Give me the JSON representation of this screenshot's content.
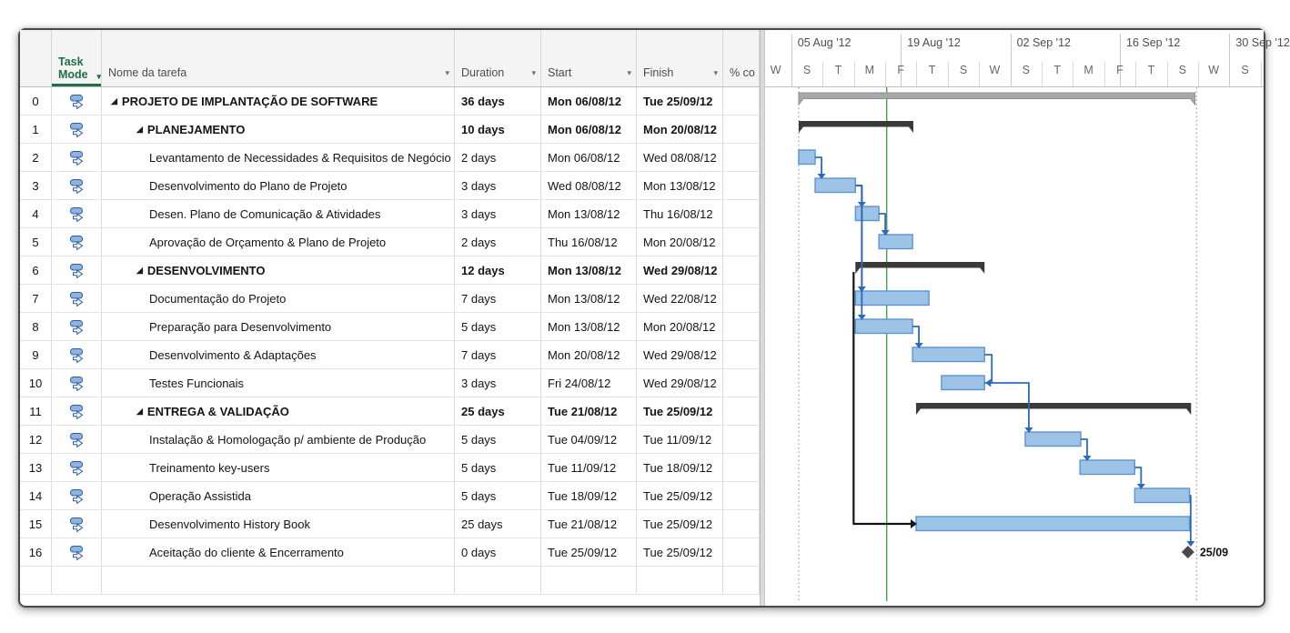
{
  "app": {
    "title": "Gantt chart - PROJETO DE IMPLANTAÇÃO DE SOFTWARE"
  },
  "table": {
    "columns": {
      "row_number": "",
      "task_mode": "Task Mode",
      "name": "Nome da tarefa",
      "duration": "Duration",
      "start": "Start",
      "finish": "Finish",
      "percent": "% co"
    },
    "filter_arrow_glyph": "▾",
    "expand_glyph": "◢",
    "rows": [
      {
        "id": 0,
        "level": 0,
        "summary": true,
        "name": "PROJETO DE IMPLANTAÇÃO DE SOFTWARE",
        "duration": "36 days",
        "start": "Mon 06/08/12",
        "finish": "Tue 25/09/12"
      },
      {
        "id": 1,
        "level": 1,
        "summary": true,
        "name": "PLANEJAMENTO",
        "duration": "10 days",
        "start": "Mon 06/08/12",
        "finish": "Mon 20/08/12"
      },
      {
        "id": 2,
        "level": 2,
        "summary": false,
        "name": "Levantamento de Necessidades & Requisitos de Negócio",
        "duration": "2 days",
        "start": "Mon 06/08/12",
        "finish": "Wed 08/08/12"
      },
      {
        "id": 3,
        "level": 2,
        "summary": false,
        "name": "Desenvolvimento do Plano de Projeto",
        "duration": "3 days",
        "start": "Wed 08/08/12",
        "finish": "Mon 13/08/12"
      },
      {
        "id": 4,
        "level": 2,
        "summary": false,
        "name": "Desen. Plano de Comunicação & Atividades",
        "duration": "3 days",
        "start": "Mon 13/08/12",
        "finish": "Thu 16/08/12"
      },
      {
        "id": 5,
        "level": 2,
        "summary": false,
        "name": "Aprovação de Orçamento & Plano de Projeto",
        "duration": "2 days",
        "start": "Thu 16/08/12",
        "finish": "Mon 20/08/12"
      },
      {
        "id": 6,
        "level": 1,
        "summary": true,
        "name": "DESENVOLVIMENTO",
        "duration": "12 days",
        "start": "Mon 13/08/12",
        "finish": "Wed 29/08/12"
      },
      {
        "id": 7,
        "level": 2,
        "summary": false,
        "name": "Documentação do Projeto",
        "duration": "7 days",
        "start": "Mon 13/08/12",
        "finish": "Wed 22/08/12"
      },
      {
        "id": 8,
        "level": 2,
        "summary": false,
        "name": "Preparação para Desenvolvimento",
        "duration": "5 days",
        "start": "Mon 13/08/12",
        "finish": "Mon 20/08/12"
      },
      {
        "id": 9,
        "level": 2,
        "summary": false,
        "name": "Desenvolvimento & Adaptações",
        "duration": "7 days",
        "start": "Mon 20/08/12",
        "finish": "Wed 29/08/12"
      },
      {
        "id": 10,
        "level": 2,
        "summary": false,
        "name": "Testes Funcionais",
        "duration": "3 days",
        "start": "Fri 24/08/12",
        "finish": "Wed 29/08/12"
      },
      {
        "id": 11,
        "level": 1,
        "summary": true,
        "name": "ENTREGA & VALIDAÇÃO",
        "duration": "25 days",
        "start": "Tue 21/08/12",
        "finish": "Tue 25/09/12"
      },
      {
        "id": 12,
        "level": 2,
        "summary": false,
        "name": "Instalação & Homologação p/ ambiente de Produção",
        "duration": "5 days",
        "start": "Tue 04/09/12",
        "finish": "Tue 11/09/12"
      },
      {
        "id": 13,
        "level": 2,
        "summary": false,
        "name": "Treinamento key-users",
        "duration": "5 days",
        "start": "Tue 11/09/12",
        "finish": "Tue 18/09/12"
      },
      {
        "id": 14,
        "level": 2,
        "summary": false,
        "name": "Operação Assistida",
        "duration": "5 days",
        "start": "Tue 18/09/12",
        "finish": "Tue 25/09/12"
      },
      {
        "id": 15,
        "level": 2,
        "summary": false,
        "name": "Desenvolvimento History Book",
        "duration": "25 days",
        "start": "Tue 21/08/12",
        "finish": "Tue 25/09/12"
      },
      {
        "id": 16,
        "level": 2,
        "summary": false,
        "name": "Aceitação do cliente & Encerramento",
        "duration": "0 days",
        "start": "Tue 25/09/12",
        "finish": "Tue 25/09/12"
      }
    ]
  },
  "timeline": {
    "tier_top_sections": [
      {
        "label": "05 Aug '12",
        "day": 4
      },
      {
        "label": "19 Aug '12",
        "day": 18
      },
      {
        "label": "02 Sep '12",
        "day": 32
      },
      {
        "label": "16 Sep '12",
        "day": 46
      },
      {
        "label": "30 Sep '12",
        "day": 60
      }
    ],
    "tier_bottom_letters": [
      "W",
      "S",
      "T",
      "M",
      "F",
      "T",
      "S",
      "W",
      "S",
      "T",
      "M",
      "F",
      "T",
      "S",
      "W",
      "S"
    ],
    "origin_date": "01 Aug '12",
    "days_per_cell": 4
  },
  "chart_data": {
    "type": "gantt",
    "note": "day offsets are calendar days from 01 Aug 2012",
    "tasks": [
      {
        "id": 0,
        "row": 0,
        "kind": "project_summary",
        "start_day": 4.95,
        "end_day": 55.6
      },
      {
        "id": 1,
        "row": 1,
        "kind": "summary",
        "start_day": 4.95,
        "end_day": 19.6
      },
      {
        "id": 2,
        "row": 2,
        "kind": "task",
        "start_day": 4.95,
        "end_day": 7.05
      },
      {
        "id": 3,
        "row": 3,
        "kind": "task",
        "start_day": 7.05,
        "end_day": 12.2
      },
      {
        "id": 4,
        "row": 4,
        "kind": "task",
        "start_day": 12.2,
        "end_day": 15.2
      },
      {
        "id": 5,
        "row": 5,
        "kind": "task",
        "start_day": 15.2,
        "end_day": 19.5
      },
      {
        "id": 6,
        "row": 6,
        "kind": "summary",
        "start_day": 12.2,
        "end_day": 28.7
      },
      {
        "id": 7,
        "row": 7,
        "kind": "task",
        "start_day": 12.2,
        "end_day": 21.6
      },
      {
        "id": 8,
        "row": 8,
        "kind": "task",
        "start_day": 12.2,
        "end_day": 19.5
      },
      {
        "id": 9,
        "row": 9,
        "kind": "task",
        "start_day": 19.5,
        "end_day": 28.7
      },
      {
        "id": 10,
        "row": 10,
        "kind": "task",
        "start_day": 23.2,
        "end_day": 28.7
      },
      {
        "id": 11,
        "row": 11,
        "kind": "summary",
        "start_day": 19.95,
        "end_day": 55.1
      },
      {
        "id": 12,
        "row": 12,
        "kind": "task",
        "start_day": 33.9,
        "end_day": 41.0
      },
      {
        "id": 13,
        "row": 13,
        "kind": "task",
        "start_day": 40.9,
        "end_day": 47.9
      },
      {
        "id": 14,
        "row": 14,
        "kind": "task",
        "start_day": 47.9,
        "end_day": 54.9
      },
      {
        "id": 15,
        "row": 15,
        "kind": "task",
        "start_day": 19.95,
        "end_day": 54.9
      },
      {
        "id": 16,
        "row": 16,
        "kind": "milestone",
        "day": 54.7
      }
    ],
    "links": [
      {
        "from": 2,
        "to": 3,
        "type": "FS"
      },
      {
        "from": 3,
        "to": 4,
        "type": "FS"
      },
      {
        "from": 4,
        "to": 5,
        "type": "FS"
      },
      {
        "from": 3,
        "to": 7,
        "type": "FS"
      },
      {
        "from": 3,
        "to": 8,
        "type": "FS"
      },
      {
        "from": 8,
        "to": 9,
        "type": "FS"
      },
      {
        "from": 9,
        "to": 10,
        "type": "FF"
      },
      {
        "from": 10,
        "to": 12,
        "type": "FS"
      },
      {
        "from": 12,
        "to": 13,
        "type": "FS"
      },
      {
        "from": 13,
        "to": 14,
        "type": "FS"
      },
      {
        "from": 14,
        "to": 16,
        "type": "FS"
      },
      {
        "from": 6,
        "to": 15,
        "type": "SS",
        "color": "black"
      }
    ],
    "current_date_line_day": 16.2,
    "project_start_marker_day": 4.95,
    "project_finish_marker_day": 55.8,
    "milestone_label": "25/09",
    "colors": {
      "task_fill": "#9DC3E6",
      "task_border": "#5E93CF",
      "summary_bar": "#3a3a3a",
      "project_summary_fill": "#a8a8a8",
      "project_summary_border": "#8f8f8f",
      "link_blue": "#2a69be",
      "link_black": "#141414",
      "current_date_line": "#3f9b3f",
      "marker_line": "#9b9b9b",
      "milestone": "#4a4a4a",
      "header_accent_green": "#1e7145"
    }
  }
}
